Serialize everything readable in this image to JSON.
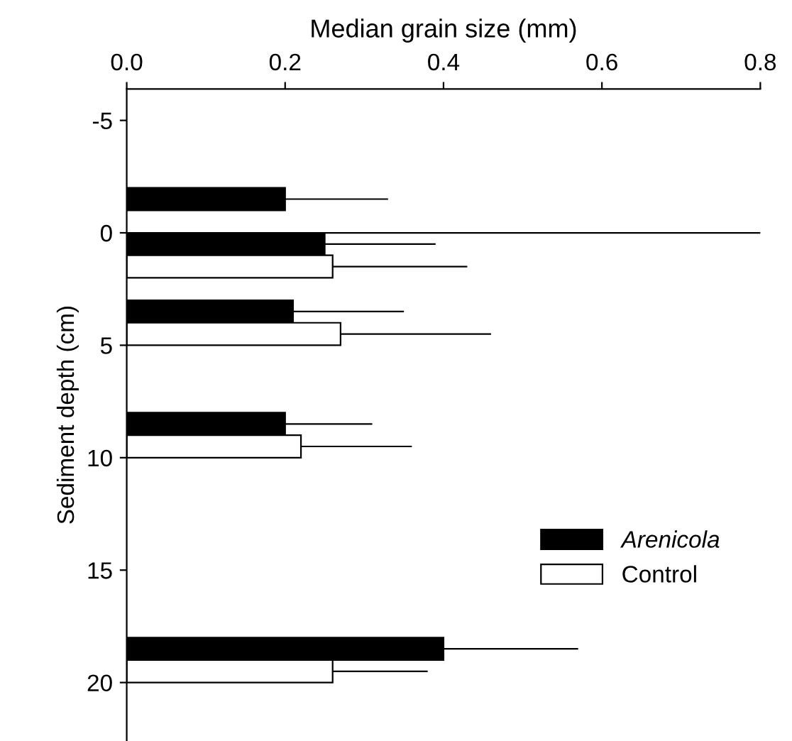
{
  "chart_data": {
    "type": "bar",
    "orientation": "horizontal",
    "xlabel": "Median grain size (mm)",
    "ylabel": "Sediment depth (cm)",
    "xlim": [
      0,
      0.8
    ],
    "xticks": [
      {
        "value": 0,
        "label": "0.0"
      },
      {
        "value": 0.2,
        "label": "0.2"
      },
      {
        "value": 0.4,
        "label": "0.4"
      },
      {
        "value": 0.6,
        "label": "0.6"
      },
      {
        "value": 0.8,
        "label": "0.8"
      }
    ],
    "ylim": [
      22.6,
      -6.4
    ],
    "yticks": [
      -5,
      0,
      5,
      10,
      15,
      20
    ],
    "series": [
      {
        "name": "Arenicola",
        "color": "#000000",
        "x": [
          -1.5,
          0.5,
          3.5,
          8.5,
          18.5
        ],
        "values": [
          0.2,
          0.25,
          0.21,
          0.2,
          0.4
        ],
        "errors": [
          [
            0.2,
            0.33
          ],
          [
            0.25,
            0.39
          ],
          [
            0.21,
            0.35
          ],
          [
            0.2,
            0.31
          ],
          [
            0.4,
            0.57
          ]
        ]
      },
      {
        "name": "Control",
        "color": "#ffffff",
        "x": [
          1.5,
          4.5,
          9.5,
          19.5
        ],
        "values": [
          0.26,
          0.27,
          0.22,
          0.26
        ],
        "errors": [
          [
            0.26,
            0.43
          ],
          [
            0.27,
            0.46
          ],
          [
            0.22,
            0.36
          ],
          [
            0.26,
            0.38
          ]
        ]
      }
    ],
    "ref_lines": [
      {
        "axis": "y",
        "value": 0,
        "label": null
      }
    ],
    "legend": "right",
    "grid": false
  }
}
